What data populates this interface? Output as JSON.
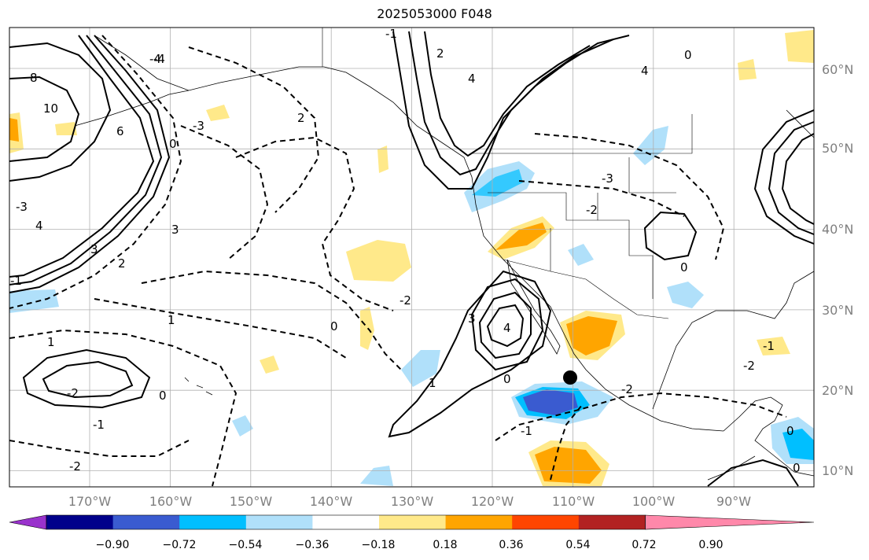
{
  "title": "2025053000 F048",
  "lat_labels": [
    "60°N",
    "50°N",
    "40°N",
    "30°N",
    "20°N",
    "10°N"
  ],
  "lon_labels": [
    "170°W",
    "160°W",
    "150°W",
    "140°W",
    "130°W",
    "120°W",
    "110°W",
    "100°W",
    "90°W"
  ],
  "colorbar": {
    "ticks": [
      "−0.90",
      "−0.72",
      "−0.54",
      "−0.36",
      "−0.18",
      "0.18",
      "0.36",
      "0.54",
      "0.72",
      "0.90"
    ],
    "colors": [
      "#9932cc",
      "#00008b",
      "#3a5bd0",
      "#00bfff",
      "#b0e0fa",
      "#ffffff",
      "#ffe98a",
      "#ffa500",
      "#ff4500",
      "#b22222",
      "#ff88aa"
    ]
  },
  "contour_labels": [
    "8",
    "10",
    "6",
    "4",
    "0",
    "3",
    "2",
    "1",
    "-1",
    "-2",
    "-3",
    "-4",
    "3",
    "4",
    "1",
    "0",
    "-2",
    "2",
    "-1",
    "-3",
    "4",
    "0",
    "-2",
    "0",
    "-1",
    "3",
    "4",
    "1",
    "-2",
    "0",
    "-1",
    "0",
    "0",
    "-2",
    "-3",
    "2",
    "-4",
    "-2",
    "-1",
    "0"
  ],
  "marker_label": "",
  "extent": {
    "lon": [
      -180,
      -80
    ],
    "lat": [
      8,
      66
    ]
  }
}
